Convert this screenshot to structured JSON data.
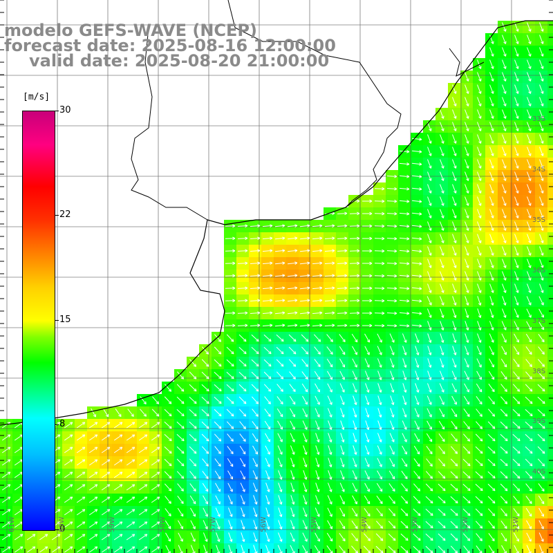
{
  "header": {
    "line1": "modelo GEFS-WAVE (NCEP)",
    "line2": "forecast date: 2025-08-16 12:00:00",
    "line3": "valid date: 2025-08-20 21:00:00"
  },
  "colorbar": {
    "units": "[m/s]",
    "ticks": [
      "30",
      "22",
      "15",
      "8",
      "0"
    ],
    "min": 0,
    "max": 30
  },
  "lat_labels": [
    "33S",
    "34S",
    "35S",
    "36S",
    "37S",
    "38S",
    "39S",
    "40S"
  ],
  "lon_labels": [
    "61W",
    "60W",
    "59W",
    "58W",
    "57W",
    "56W",
    "55W",
    "54W",
    "53W",
    "52W",
    "51W"
  ],
  "legend_colors": [
    "#0000ff",
    "#00bfff",
    "#00ffff",
    "#00ff00",
    "#ffff00",
    "#ff8000",
    "#ff0000",
    "#c8007a"
  ]
}
